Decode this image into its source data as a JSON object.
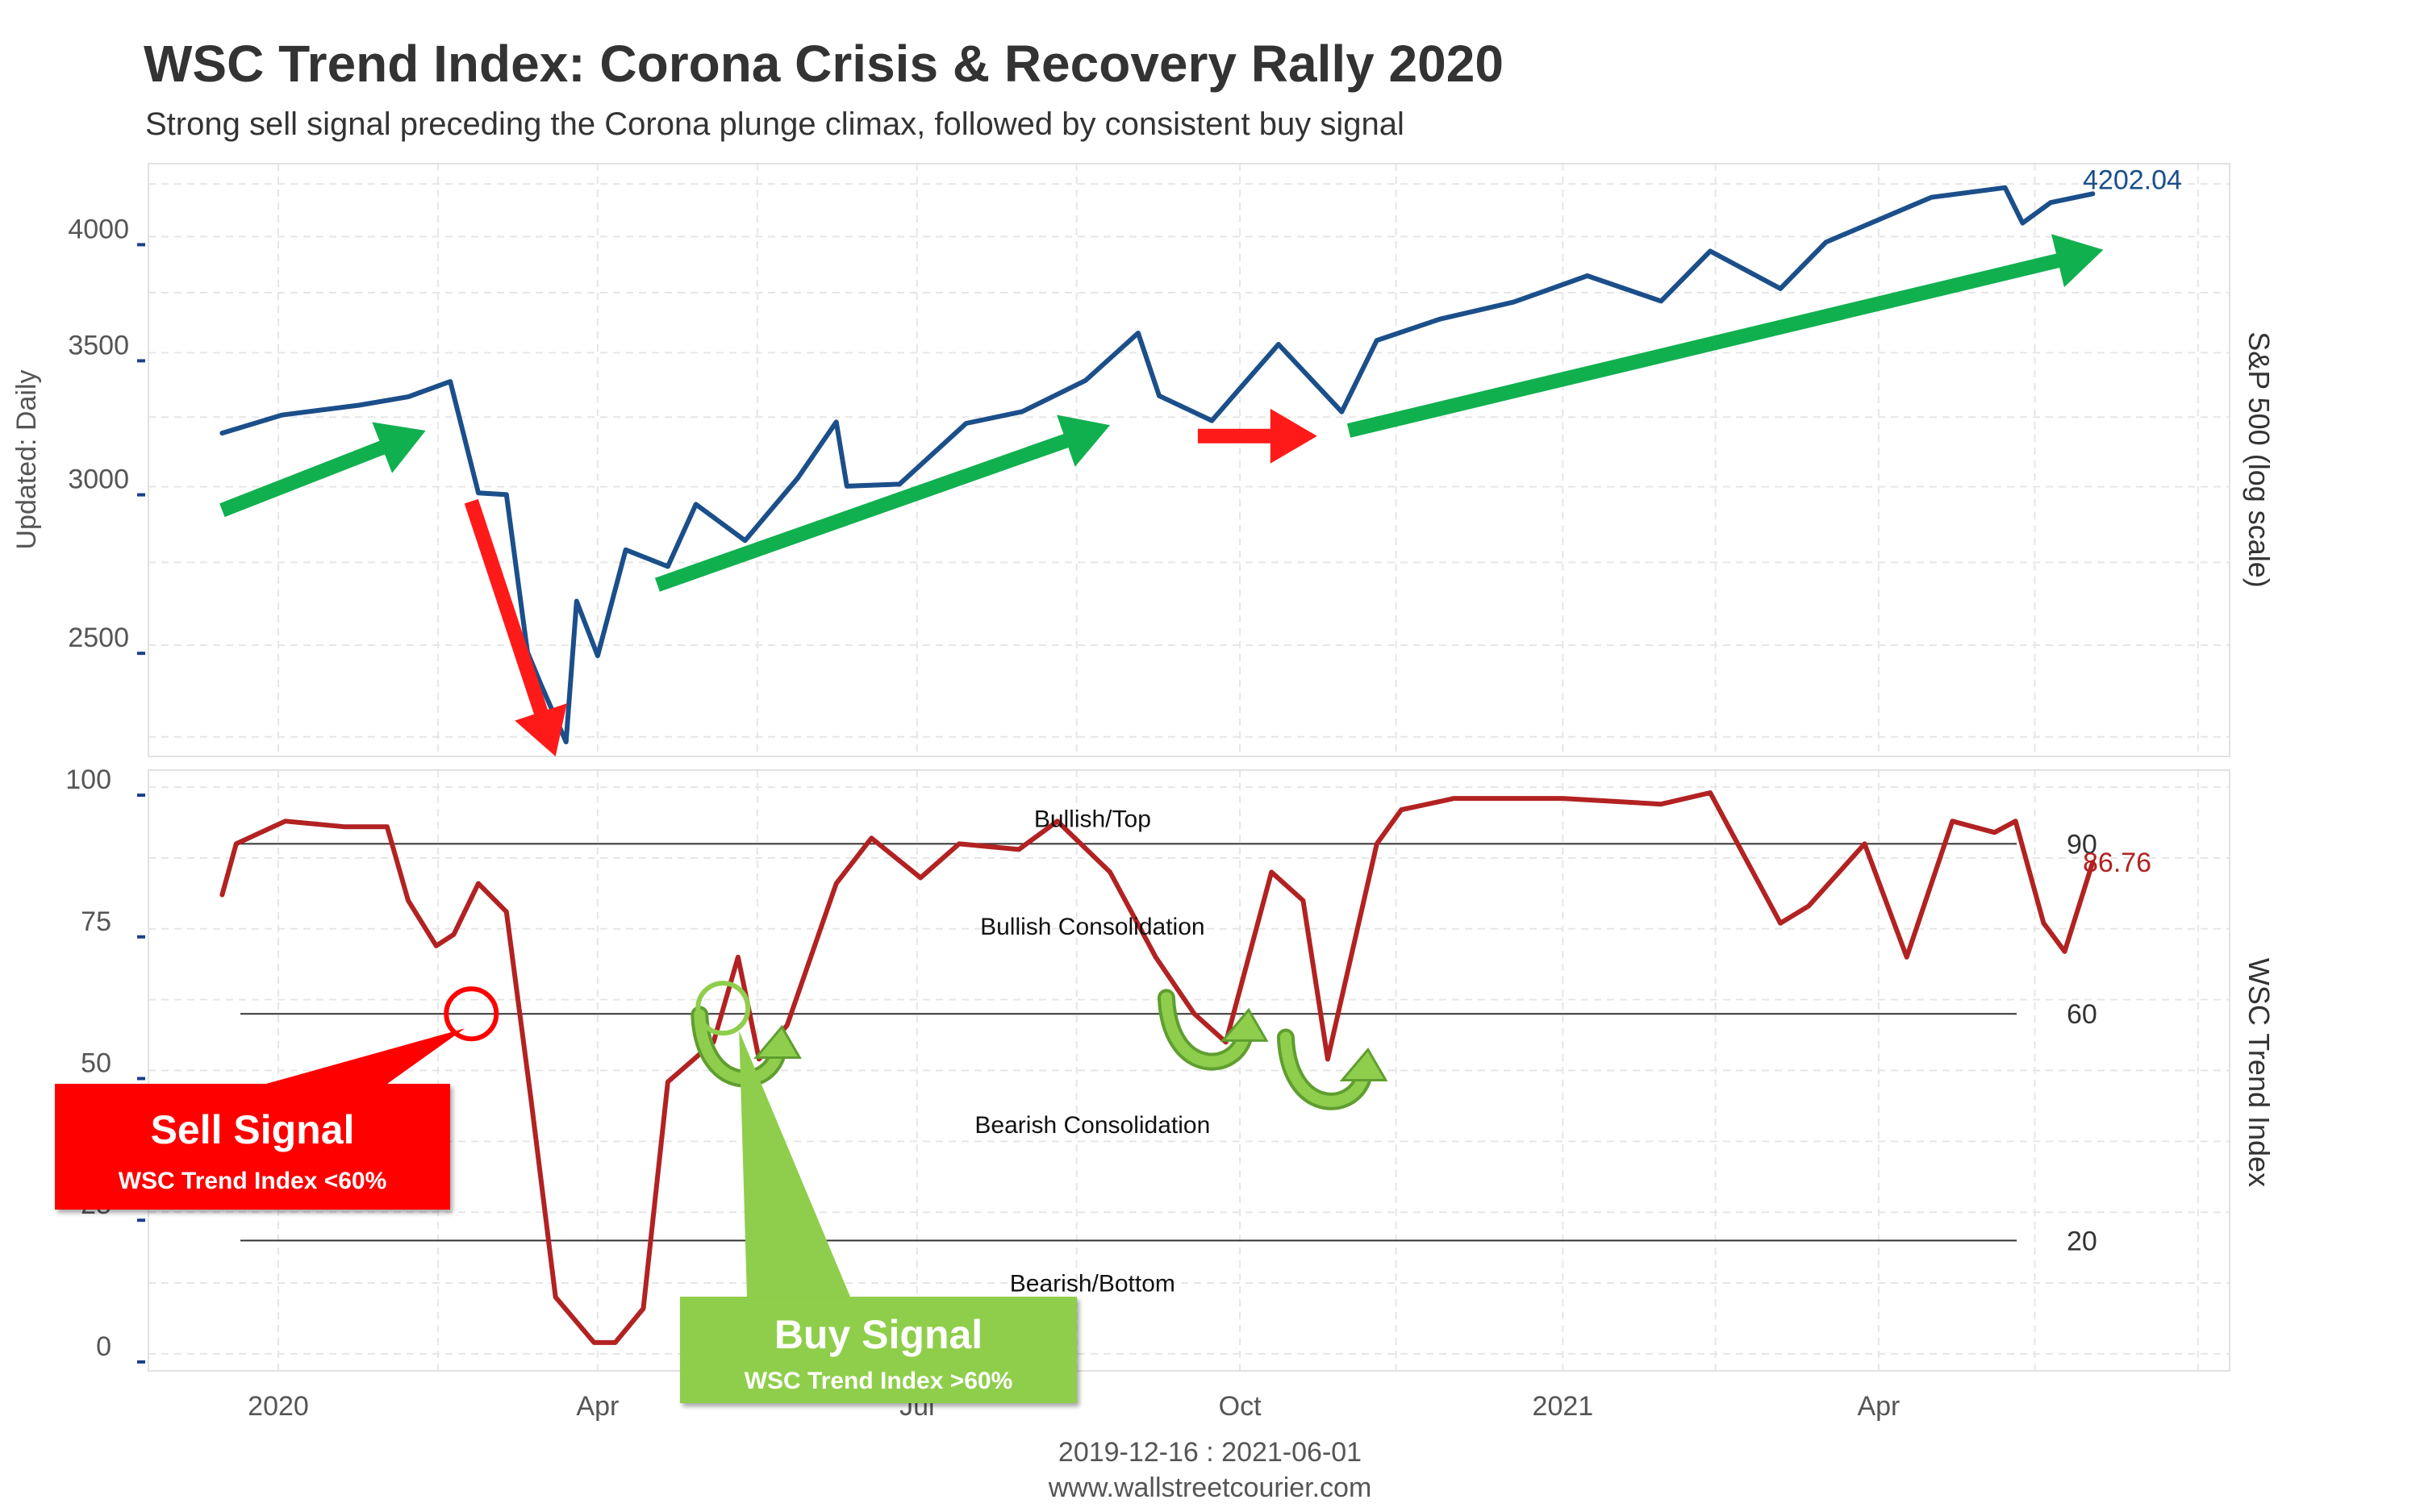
{
  "title": "WSC Trend Index: Corona Crisis & Recovery Rally 2020",
  "subtitle": "Strong sell signal preceding the Corona plunge climax, followed by consistent buy signal",
  "footer": {
    "date_range": "2019-12-16 : 2021-06-01",
    "source": "www.wallstreetcourier.com"
  },
  "colors": {
    "sp500": "#1b4f8a",
    "wsc": "#b22222",
    "green_arrow": "#11b04f",
    "red_arrow": "#ff1a1a",
    "buy": "#8fce4c",
    "sell": "#ff0000"
  },
  "chart_data": [
    {
      "type": "line",
      "name": "top-panel",
      "ylabel": "S&P 500 (log scale)",
      "side_label": "Updated: Daily",
      "y_scale": "log",
      "ylim": [
        2200,
        4350
      ],
      "yticks": [
        2500,
        3000,
        3500,
        4000
      ],
      "xlim": [
        "2019-11-25",
        "2021-07-10"
      ],
      "last_value_label": "4202.04",
      "grid": true,
      "series": [
        {
          "name": "S&P 500",
          "x": [
            "2019-12-16",
            "2020-01-02",
            "2020-01-24",
            "2020-02-07",
            "2020-02-19",
            "2020-02-27",
            "2020-03-06",
            "2020-03-12",
            "2020-03-16",
            "2020-03-23",
            "2020-03-26",
            "2020-04-01",
            "2020-04-09",
            "2020-04-21",
            "2020-04-29",
            "2020-05-13",
            "2020-05-28",
            "2020-06-08",
            "2020-06-11",
            "2020-06-26",
            "2020-07-15",
            "2020-07-31",
            "2020-08-18",
            "2020-09-02",
            "2020-09-08",
            "2020-09-23",
            "2020-10-12",
            "2020-10-30",
            "2020-11-09",
            "2020-11-27",
            "2020-12-18",
            "2021-01-08",
            "2021-01-29",
            "2021-02-12",
            "2021-03-04",
            "2021-03-17",
            "2021-04-16",
            "2021-05-07",
            "2021-05-12",
            "2021-05-20",
            "2021-06-01"
          ],
          "values": [
            3191,
            3258,
            3295,
            3327,
            3386,
            2979,
            2973,
            2480,
            2386,
            2237,
            2630,
            2470,
            2790,
            2737,
            2940,
            2820,
            3030,
            3232,
            3002,
            3009,
            3227,
            3271,
            3390,
            3580,
            3331,
            3237,
            3534,
            3270,
            3550,
            3638,
            3710,
            3824,
            3714,
            3934,
            3768,
            3975,
            4185,
            4232,
            4063,
            4160,
            4202.04
          ]
        }
      ],
      "annotations": [
        {
          "type": "arrow",
          "color": "green",
          "from": [
            "2019-12-16",
            2920
          ],
          "to": [
            "2020-02-12",
            3200
          ]
        },
        {
          "type": "arrow",
          "color": "red",
          "from": [
            "2020-02-25",
            2950
          ],
          "to": [
            "2020-03-20",
            2200
          ]
        },
        {
          "type": "arrow",
          "color": "green",
          "from": [
            "2020-04-18",
            2680
          ],
          "to": [
            "2020-08-25",
            3220
          ]
        },
        {
          "type": "arrow",
          "color": "red",
          "from": [
            "2020-09-19",
            3180
          ],
          "to": [
            "2020-10-23",
            3180
          ]
        },
        {
          "type": "arrow",
          "color": "green",
          "from": [
            "2020-11-01",
            3200
          ],
          "to": [
            "2021-06-04",
            3940
          ]
        }
      ]
    },
    {
      "type": "line",
      "name": "bottom-panel",
      "ylabel": "WSC Trend Index",
      "ylim": [
        -3,
        103
      ],
      "yticks": [
        0,
        25,
        50,
        75,
        100
      ],
      "xlim": [
        "2019-11-25",
        "2021-07-10"
      ],
      "xticks": [
        {
          "date": "2020-01-01",
          "label": "2020"
        },
        {
          "date": "2020-04-01",
          "label": "Apr"
        },
        {
          "date": "2020-07-01",
          "label": "Jul"
        },
        {
          "date": "2020-10-01",
          "label": "Oct"
        },
        {
          "date": "2021-01-01",
          "label": "2021"
        },
        {
          "date": "2021-04-01",
          "label": "Apr"
        }
      ],
      "last_value_label": "86.76",
      "grid": true,
      "reference_lines": [
        {
          "value": 90,
          "label": "90"
        },
        {
          "value": 60,
          "label": "60"
        },
        {
          "value": 20,
          "label": "20"
        }
      ],
      "zone_labels": [
        {
          "label": "Bullish/Top",
          "x": "2020-08-20",
          "y": 93
        },
        {
          "label": "Bullish Consolidation",
          "x": "2020-08-20",
          "y": 74
        },
        {
          "label": "Bearish Consolidation",
          "x": "2020-08-20",
          "y": 39
        },
        {
          "label": "Bearish/Bottom",
          "x": "2020-08-20",
          "y": 11
        }
      ],
      "series": [
        {
          "name": "WSC Trend Index",
          "x": [
            "2019-12-16",
            "2019-12-20",
            "2020-01-03",
            "2020-01-20",
            "2020-02-01",
            "2020-02-07",
            "2020-02-15",
            "2020-02-20",
            "2020-02-27",
            "2020-03-06",
            "2020-03-13",
            "2020-03-20",
            "2020-03-31",
            "2020-04-06",
            "2020-04-14",
            "2020-04-21",
            "2020-05-04",
            "2020-05-11",
            "2020-05-17",
            "2020-05-25",
            "2020-06-08",
            "2020-06-18",
            "2020-07-02",
            "2020-07-13",
            "2020-07-30",
            "2020-08-10",
            "2020-08-25",
            "2020-09-07",
            "2020-09-18",
            "2020-09-27",
            "2020-10-10",
            "2020-10-19",
            "2020-10-26",
            "2020-11-09",
            "2020-11-16",
            "2020-12-01",
            "2021-01-01",
            "2021-01-29",
            "2021-02-12",
            "2021-03-04",
            "2021-03-12",
            "2021-03-28",
            "2021-04-09",
            "2021-04-22",
            "2021-05-04",
            "2021-05-10",
            "2021-05-18",
            "2021-05-24",
            "2021-06-01"
          ],
          "values": [
            81,
            90,
            94,
            93,
            93,
            80,
            72,
            74,
            83,
            78,
            45,
            10,
            2,
            2,
            8,
            48,
            55,
            70,
            52,
            58,
            83,
            91,
            84,
            90,
            89,
            94,
            85,
            70,
            60,
            55,
            85,
            80,
            52,
            90,
            96,
            98,
            98,
            97,
            99,
            76,
            79,
            90,
            70,
            94,
            92,
            94,
            76,
            71,
            86.76
          ]
        }
      ],
      "annotations": [
        {
          "type": "callout",
          "label": "Sell Signal",
          "sub_label": "WSC Trend Index <60%",
          "point": [
            "2020-02-25",
            60
          ]
        },
        {
          "type": "callout",
          "label": "Buy Signal",
          "sub_label": "WSC Trend Index >60%",
          "point": [
            "2020-05-09",
            61
          ]
        },
        {
          "type": "curved-arrow",
          "at": [
            "2020-05-12",
            52
          ]
        },
        {
          "type": "curved-arrow",
          "at": [
            "2020-09-22",
            55
          ]
        },
        {
          "type": "curved-arrow",
          "at": [
            "2020-10-26",
            48
          ]
        }
      ]
    }
  ]
}
